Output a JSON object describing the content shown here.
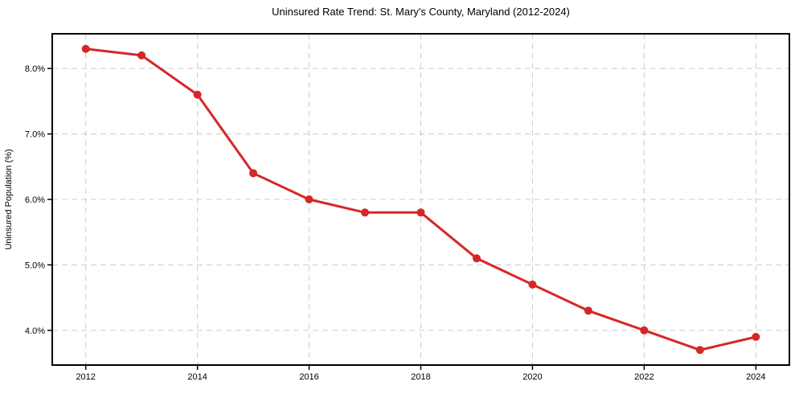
{
  "chart_data": {
    "type": "line",
    "title": "Uninsured Rate Trend: St. Mary's County, Maryland (2012-2024)",
    "xlabel": "",
    "ylabel": "Uninsured Population (%)",
    "x": [
      2012,
      2013,
      2014,
      2015,
      2016,
      2017,
      2018,
      2019,
      2020,
      2021,
      2022,
      2023,
      2024
    ],
    "values": [
      8.3,
      8.2,
      7.6,
      6.4,
      6.0,
      5.8,
      5.8,
      5.1,
      4.7,
      4.3,
      4.0,
      3.7,
      3.9
    ],
    "xlim": [
      2011.4,
      2024.6
    ],
    "ylim": [
      3.47,
      8.53
    ],
    "xticks": [
      2012,
      2014,
      2016,
      2018,
      2020,
      2022,
      2024
    ],
    "xtick_labels": [
      "2012",
      "2014",
      "2016",
      "2018",
      "2020",
      "2022",
      "2024"
    ],
    "yticks": [
      4.0,
      5.0,
      6.0,
      7.0,
      8.0
    ],
    "ytick_labels": [
      "4.0%",
      "5.0%",
      "6.0%",
      "7.0%",
      "8.0%"
    ],
    "grid": true,
    "grid_style": "dashed",
    "legend": "none",
    "marker": "circle",
    "colors": {
      "line": "#d62728",
      "marker": "#d62728",
      "grid": "#cccccc",
      "spine": "#000000",
      "text": "#000000",
      "background": "#ffffff"
    }
  }
}
